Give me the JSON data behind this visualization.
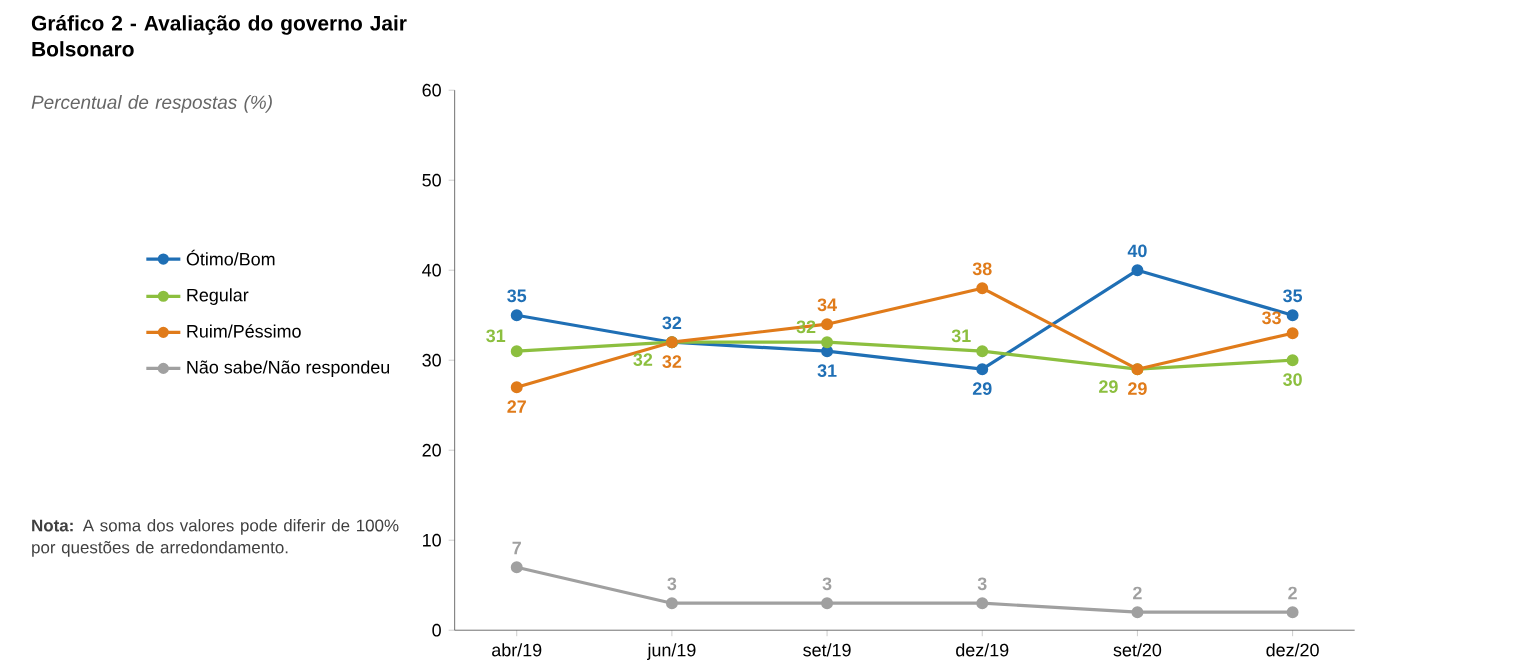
{
  "chart_data": {
    "type": "line",
    "title": "Gráfico 2 - Avaliação do governo Jair Bolsonaro",
    "subtitle": "Percentual de respostas (%)",
    "categories": [
      "abr/19",
      "jun/19",
      "set/19",
      "dez/19",
      "set/20",
      "dez/20"
    ],
    "series": [
      {
        "name": "Ótimo/Bom",
        "color": "#1f6fb5",
        "values": [
          35,
          32,
          31,
          29,
          40,
          35
        ]
      },
      {
        "name": "Regular",
        "color": "#8cbf3f",
        "values": [
          31,
          32,
          32,
          31,
          29,
          30
        ]
      },
      {
        "name": "Ruim/Péssimo",
        "color": "#e07b1a",
        "values": [
          27,
          32,
          34,
          38,
          29,
          33
        ]
      },
      {
        "name": "Não sabe/Não respondeu",
        "color": "#a0a0a0",
        "values": [
          7,
          3,
          3,
          3,
          2,
          2
        ]
      }
    ],
    "ylim": [
      0,
      60
    ],
    "yticks": [
      0,
      10,
      20,
      30,
      40,
      50,
      60
    ],
    "grid": false,
    "legend": "left",
    "marker": "circle",
    "line_style": "solid",
    "data_labels": true,
    "annotations": [
      "**Nota:** A soma dos valores pode diferir de 100% por questões de arredondamento."
    ]
  }
}
